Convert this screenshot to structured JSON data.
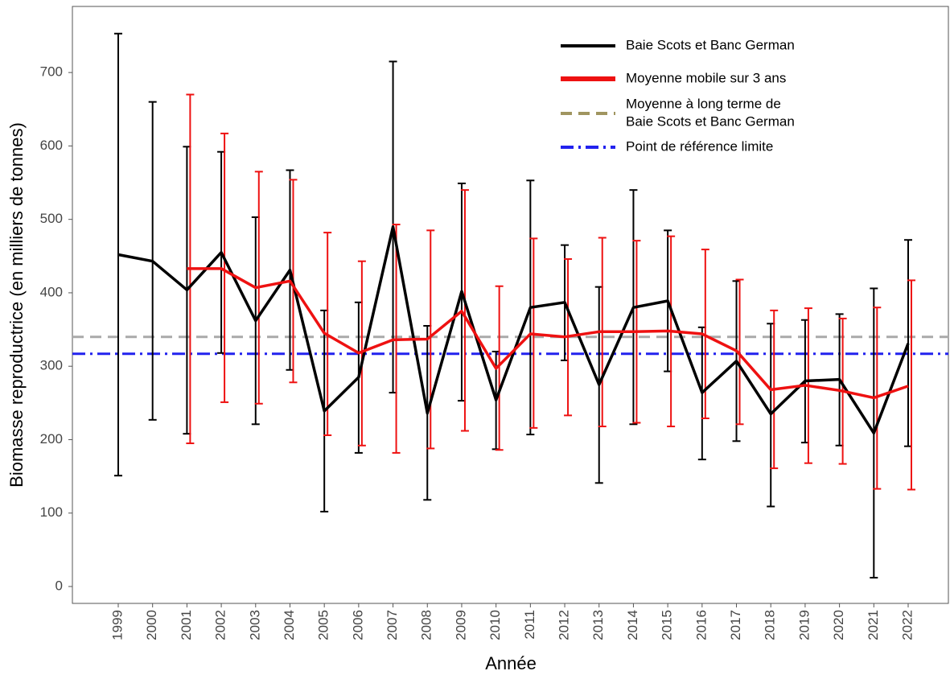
{
  "chart_data": {
    "type": "line",
    "x_label": "Année",
    "y_label": "Biomasse reproductrice (en milliers de tonnes)",
    "categories": [
      "1999",
      "2000",
      "2001",
      "2002",
      "2003",
      "2004",
      "2005",
      "2006",
      "2007",
      "2008",
      "2009",
      "2010",
      "2011",
      "2012",
      "2013",
      "2014",
      "2015",
      "2016",
      "2017",
      "2018",
      "2019",
      "2020",
      "2021",
      "2022"
    ],
    "series": [
      {
        "name": "Baie Scots et Banc German",
        "color": "#000000",
        "values": [
          452,
          443,
          404,
          455,
          362,
          431,
          239,
          285,
          490,
          236,
          402,
          254,
          380,
          387,
          275,
          380,
          389,
          264,
          307,
          235,
          280,
          282,
          209,
          331
        ],
        "lower": [
          151,
          227,
          208,
          318,
          221,
          295,
          102,
          182,
          264,
          118,
          253,
          187,
          207,
          308,
          141,
          221,
          293,
          173,
          198,
          109,
          196,
          192,
          12,
          191
        ],
        "upper": [
          753,
          660,
          599,
          592,
          503,
          567,
          376,
          387,
          715,
          355,
          549,
          320,
          553,
          465,
          408,
          540,
          485,
          353,
          416,
          358,
          363,
          371,
          406,
          472
        ]
      },
      {
        "name": "Moyenne mobile sur 3 ans",
        "color": "#ee1111",
        "values": [
          null,
          null,
          433,
          433,
          407,
          416,
          345,
          318,
          336,
          337,
          375,
          297,
          344,
          340,
          347,
          347,
          348,
          344,
          321,
          268,
          274,
          267,
          257,
          273
        ],
        "lower": [
          null,
          null,
          195,
          251,
          249,
          278,
          206,
          192,
          182,
          188,
          212,
          186,
          216,
          233,
          218,
          223,
          218,
          229,
          221,
          161,
          168,
          167,
          133,
          132
        ],
        "upper": [
          null,
          null,
          670,
          617,
          565,
          554,
          482,
          443,
          493,
          485,
          540,
          409,
          474,
          446,
          475,
          471,
          477,
          459,
          418,
          376,
          379,
          365,
          380,
          417
        ]
      }
    ],
    "reference_lines": [
      {
        "name_lines": [
          "Moyenne à long terme de",
          "Baie Scots et Banc German"
        ],
        "value": 340,
        "color": "#aaaaaa",
        "legend_color": "#a09560",
        "dash": "14 8"
      },
      {
        "name_lines": [
          "Point de référence limite"
        ],
        "value": 317,
        "color": "#2222ee",
        "legend_color": "#2222ee",
        "dash": "16 6 3 6"
      }
    ],
    "ylim": [
      -23,
      790
    ],
    "yticks": [
      0,
      100,
      200,
      300,
      400,
      500,
      600,
      700
    ]
  }
}
